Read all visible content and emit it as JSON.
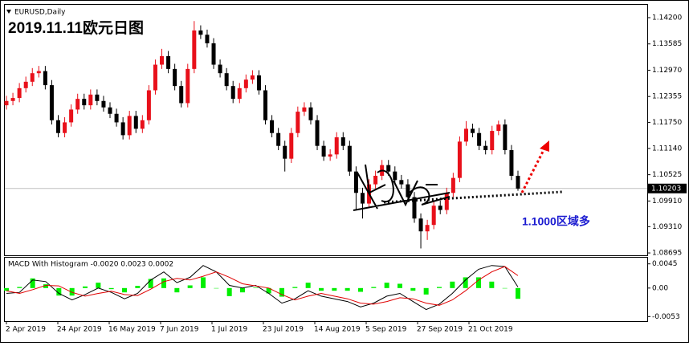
{
  "chart_data": [
    {
      "type": "candlestick",
      "symbol": "EURUSD,Daily",
      "title": "2019.11.11欧元日图",
      "annotation": "1.1000区域多",
      "up_color": "#e8101a",
      "down_color": "#000000",
      "open": [
        1.1215,
        1.1225,
        1.1232,
        1.1255,
        1.127,
        1.129,
        1.1295,
        1.1262,
        1.118,
        1.115,
        1.1175,
        1.1205,
        1.123,
        1.1215,
        1.124,
        1.1225,
        1.121,
        1.1195,
        1.1175,
        1.1145,
        1.119,
        1.116,
        1.118,
        1.125,
        1.131,
        1.133,
        1.13,
        1.126,
        1.122,
        1.13,
        1.139,
        1.138,
        1.136,
        1.131,
        1.129,
        1.126,
        1.123,
        1.1255,
        1.1275,
        1.1285,
        1.125,
        1.118,
        1.115,
        1.112,
        1.109,
        1.115,
        1.12,
        1.121,
        1.118,
        1.112,
        1.1095,
        1.11,
        1.114,
        1.112,
        1.106,
        1.101,
        1.0985,
        1.103,
        1.105,
        1.1075,
        1.106,
        1.104,
        1.103,
        1.1,
        1.095,
        1.092,
        1.0935,
        1.098,
        1.097,
        1.101,
        1.1045,
        1.113,
        1.116,
        1.115,
        1.112,
        1.111,
        1.1155,
        1.117,
        1.111,
        1.105
      ],
      "high": [
        1.1237,
        1.1244,
        1.1267,
        1.1282,
        1.1302,
        1.1307,
        1.1307,
        1.1274,
        1.1192,
        1.1187,
        1.1217,
        1.1242,
        1.1242,
        1.1252,
        1.1252,
        1.1237,
        1.1222,
        1.1207,
        1.1187,
        1.1202,
        1.1202,
        1.1192,
        1.1262,
        1.1322,
        1.1347,
        1.1342,
        1.1312,
        1.1272,
        1.1312,
        1.1412,
        1.1402,
        1.1392,
        1.1372,
        1.1322,
        1.1302,
        1.1272,
        1.1267,
        1.1287,
        1.1297,
        1.1297,
        1.1262,
        1.1192,
        1.1162,
        1.1132,
        1.1162,
        1.1212,
        1.1222,
        1.1222,
        1.1192,
        1.1132,
        1.1112,
        1.1152,
        1.1152,
        1.1132,
        1.1072,
        1.1022,
        1.1042,
        1.1062,
        1.1087,
        1.1087,
        1.1072,
        1.1052,
        1.1042,
        1.1012,
        1.0962,
        1.0947,
        1.0992,
        1.0992,
        1.1022,
        1.1057,
        1.1142,
        1.1178,
        1.1172,
        1.1162,
        1.1132,
        1.1167,
        1.1179,
        1.1182,
        1.1122,
        1.1062
      ],
      "low": [
        1.1205,
        1.1215,
        1.1222,
        1.1245,
        1.126,
        1.128,
        1.1252,
        1.117,
        1.114,
        1.114,
        1.1165,
        1.1195,
        1.1205,
        1.1205,
        1.1215,
        1.12,
        1.1185,
        1.1165,
        1.1135,
        1.1135,
        1.115,
        1.115,
        1.117,
        1.124,
        1.13,
        1.129,
        1.125,
        1.121,
        1.121,
        1.129,
        1.137,
        1.135,
        1.13,
        1.128,
        1.125,
        1.122,
        1.122,
        1.1245,
        1.1265,
        1.124,
        1.117,
        1.114,
        1.111,
        1.106,
        1.108,
        1.114,
        1.119,
        1.117,
        1.111,
        1.1085,
        1.1085,
        1.109,
        1.111,
        1.105,
        1.097,
        1.095,
        1.0975,
        1.102,
        1.104,
        1.105,
        1.103,
        1.102,
        1.099,
        1.094,
        1.088,
        1.09,
        1.0925,
        1.096,
        1.096,
        1.1,
        1.1035,
        1.112,
        1.114,
        1.111,
        1.11,
        1.11,
        1.1145,
        1.11,
        1.104,
        1.1015
      ],
      "close": [
        1.1225,
        1.1232,
        1.1255,
        1.127,
        1.129,
        1.1295,
        1.1262,
        1.118,
        1.115,
        1.1175,
        1.1205,
        1.123,
        1.1215,
        1.124,
        1.1225,
        1.121,
        1.1195,
        1.1175,
        1.1145,
        1.119,
        1.116,
        1.118,
        1.125,
        1.131,
        1.133,
        1.13,
        1.126,
        1.122,
        1.13,
        1.139,
        1.138,
        1.136,
        1.131,
        1.129,
        1.126,
        1.123,
        1.1255,
        1.1275,
        1.1285,
        1.125,
        1.118,
        1.115,
        1.112,
        1.109,
        1.115,
        1.12,
        1.121,
        1.118,
        1.112,
        1.1095,
        1.11,
        1.114,
        1.112,
        1.106,
        1.101,
        1.0985,
        1.103,
        1.105,
        1.1075,
        1.106,
        1.104,
        1.103,
        1.1,
        1.095,
        1.092,
        1.0935,
        1.098,
        1.097,
        1.101,
        1.1045,
        1.113,
        1.116,
        1.115,
        1.112,
        1.111,
        1.1155,
        1.117,
        1.111,
        1.105,
        1.102
      ],
      "ylim": [
        1.0864,
        1.145
      ],
      "yticks": [
        {
          "value": 1.142,
          "label": "1.14200"
        },
        {
          "value": 1.13585,
          "label": "1.13585"
        },
        {
          "value": 1.1297,
          "label": "1.12970"
        },
        {
          "value": 1.12355,
          "label": "1.12355"
        },
        {
          "value": 1.1175,
          "label": "1.11750"
        },
        {
          "value": 1.1114,
          "label": "1.11140"
        },
        {
          "value": 1.10525,
          "label": "1.10525"
        },
        {
          "value": 1.0991,
          "label": "1.09910"
        },
        {
          "value": 1.0931,
          "label": "1.09310"
        },
        {
          "value": 1.08695,
          "label": "1.08695"
        }
      ],
      "current_price": {
        "value": 1.10203,
        "label": "1.10203"
      },
      "x_labels": [
        "2 Apr 2019",
        "24 Apr 2019",
        "16 May 2019",
        "7 Jun 2019",
        "1 Jul 2019",
        "23 Jul 2019",
        "14 Aug 2019",
        "5 Sep 2019",
        "27 Sep 2019",
        "21 Oct 2019"
      ]
    },
    {
      "type": "macd",
      "title": "MACD With Histogram -0.0020 0.0023 0.0002",
      "ylim": [
        -0.006,
        0.0055
      ],
      "yticks": [
        0.0045,
        {
          "value": 0,
          "label": "0.00"
        },
        -0.0053
      ],
      "series": [
        {
          "kind": "bar",
          "color": "#00ee00",
          "values": [
            -0.0005,
            0.0002,
            0.0018,
            0.0007,
            -0.0014,
            -0.0014,
            0.0003,
            0.001,
            -0.0002,
            -0.0008,
            0.0004,
            0.0017,
            0.0018,
            -0.0008,
            0.0005,
            0.002,
            0.0,
            -0.0015,
            -0.0008,
            0.0001,
            -0.001,
            -0.0016,
            0.0002,
            0.001,
            -0.0005,
            -0.0005,
            -0.0005,
            -0.0007,
            0.0002,
            0.001,
            0.0008,
            -0.0005,
            -0.0012,
            0.0002,
            0.0012,
            0.002,
            0.002,
            0.0012,
            0.0,
            -0.002
          ]
        },
        {
          "kind": "line",
          "color": "#000000",
          "values": [
            -0.001,
            -0.0008,
            0.0015,
            0.0012,
            -0.001,
            -0.0022,
            -0.0012,
            0.0,
            -0.0008,
            -0.002,
            -0.001,
            0.0015,
            0.003,
            0.001,
            0.002,
            0.0042,
            0.003,
            0.0005,
            0.0,
            0.0005,
            -0.001,
            -0.0028,
            -0.002,
            -0.0005,
            -0.0015,
            -0.002,
            -0.0025,
            -0.0035,
            -0.0028,
            -0.0015,
            -0.001,
            -0.0025,
            -0.004,
            -0.003,
            -0.001,
            0.0015,
            0.0035,
            0.0042,
            0.004,
            0.0002
          ]
        },
        {
          "kind": "line",
          "color": "#e00000",
          "values": [
            -0.0005,
            -0.001,
            -0.0003,
            0.0005,
            0.0004,
            -0.0008,
            -0.0015,
            -0.001,
            -0.0006,
            -0.0012,
            -0.0014,
            -0.0002,
            0.0012,
            0.0018,
            0.0015,
            0.0022,
            0.003,
            0.002,
            0.0008,
            0.0004,
            0.0,
            -0.0012,
            -0.0022,
            -0.0015,
            -0.001,
            -0.0015,
            -0.002,
            -0.0028,
            -0.003,
            -0.0025,
            -0.0018,
            -0.002,
            -0.0028,
            -0.0032,
            -0.0022,
            -0.0005,
            0.0015,
            0.003,
            0.004,
            0.0023
          ]
        }
      ]
    }
  ]
}
